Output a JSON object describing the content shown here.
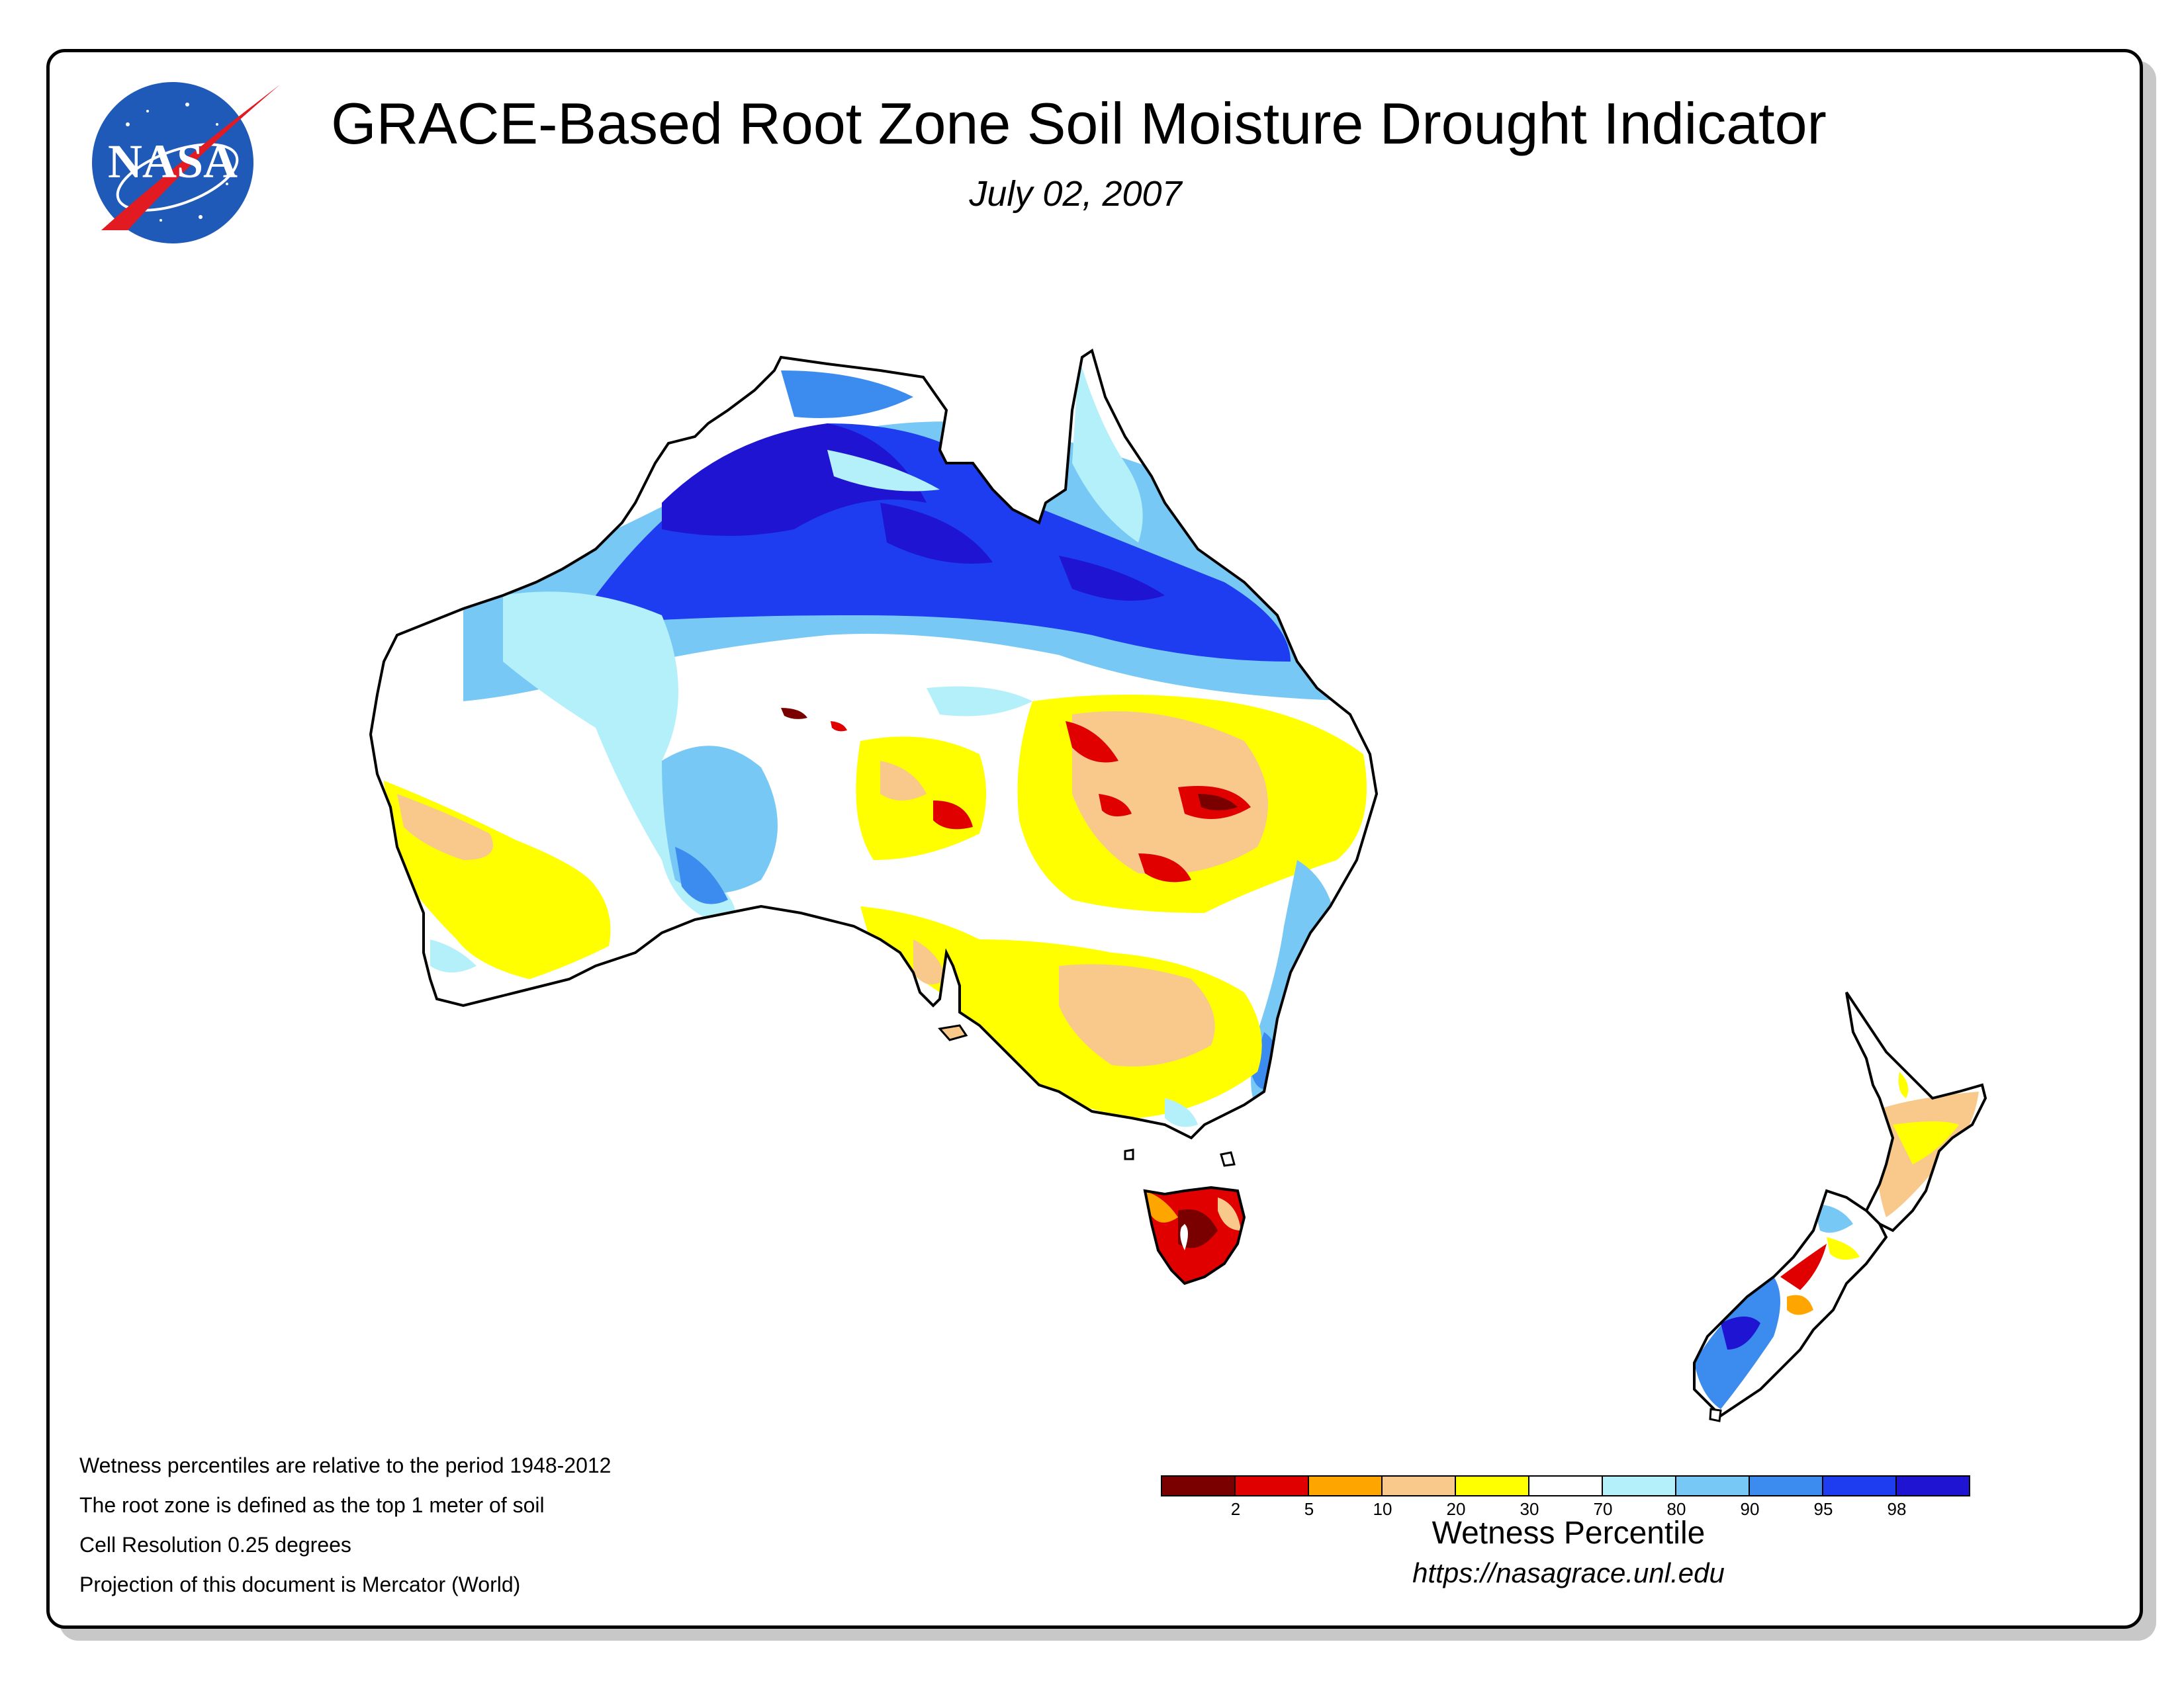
{
  "title": "GRACE-Based Root Zone Soil Moisture Drought Indicator",
  "date": "July 02, 2007",
  "logo_text": "NASA",
  "notes": [
    "Wetness percentiles are relative to the period 1948-2012",
    "The root zone is defined as the top 1 meter of soil",
    "Cell Resolution 0.25 degrees",
    "Projection of this document is Mercator (World)"
  ],
  "legend": {
    "title": "Wetness Percentile",
    "colors": [
      "#7a0000",
      "#e00000",
      "#ffa500",
      "#f8c98a",
      "#ffff00",
      "#ffffff",
      "#b4f0fa",
      "#78c8f5",
      "#3c8cf0",
      "#1e3cf0",
      "#1e14d2"
    ],
    "ticks": [
      "2",
      "5",
      "10",
      "20",
      "30",
      "70",
      "80",
      "90",
      "95",
      "98"
    ]
  },
  "url": "https://nasagrace.unl.edu",
  "colors": {
    "land_outline": "#000000",
    "very_wet": "#1e14d2",
    "wet": "#3c8cf0",
    "moist": "#b4f0fa",
    "dry": "#f8c98a",
    "drier": "#ffff00",
    "severe": "#e00000",
    "extreme": "#7a0000"
  }
}
